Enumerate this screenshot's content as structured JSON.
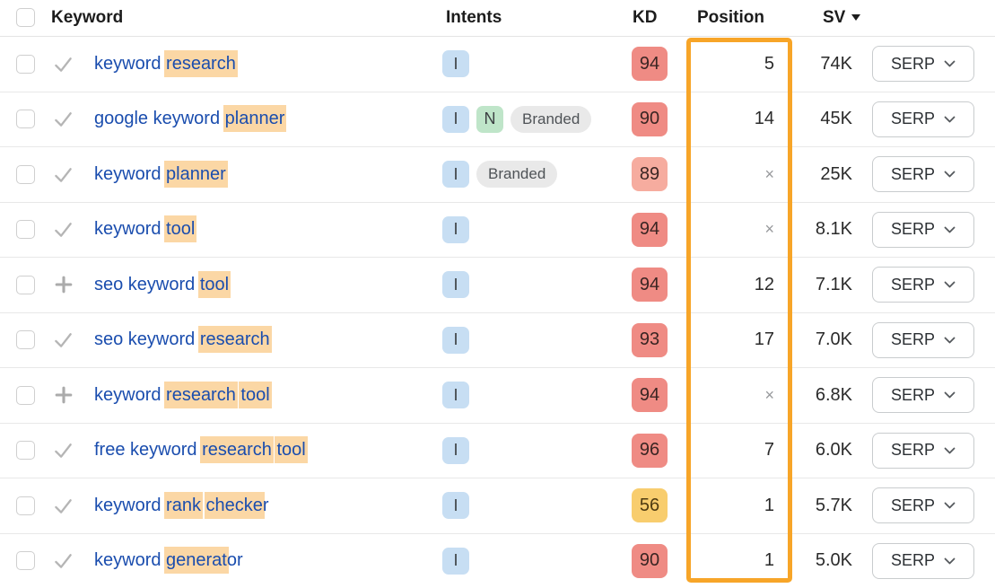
{
  "header": {
    "keyword": "Keyword",
    "intents": "Intents",
    "kd": "KD",
    "position": "Position",
    "sv": "SV",
    "sv_sort": "desc"
  },
  "serp_label": "SERP",
  "colors": {
    "accent_orange": "#f7a528",
    "keyword_link": "#1a4dae",
    "keyword_highlight": "#fbd7a5",
    "kd_red": "#ef8b84",
    "kd_light_red": "#f6ac9f",
    "kd_yellow": "#f8cd6e",
    "intent_informational": "#c7def3",
    "intent_navigational": "#bfe5c9",
    "intent_branded": "#e9e9e9"
  },
  "rows": [
    {
      "keyword_parts": [
        {
          "text": "keyword ",
          "hl": false
        },
        {
          "text": "research",
          "hl": true
        }
      ],
      "action": "check",
      "intents": [
        {
          "label": "I",
          "type": "informational"
        }
      ],
      "kd": {
        "value": "94",
        "level": "red"
      },
      "position": "5",
      "sv": "74K"
    },
    {
      "keyword_parts": [
        {
          "text": "google keyword ",
          "hl": false
        },
        {
          "text": "planner",
          "hl": true
        }
      ],
      "action": "check",
      "intents": [
        {
          "label": "I",
          "type": "informational"
        },
        {
          "label": "N",
          "type": "navigational"
        },
        {
          "label": "Branded",
          "type": "branded"
        }
      ],
      "kd": {
        "value": "90",
        "level": "red"
      },
      "position": "14",
      "sv": "45K"
    },
    {
      "keyword_parts": [
        {
          "text": "keyword ",
          "hl": false
        },
        {
          "text": "planner",
          "hl": true
        }
      ],
      "action": "check",
      "intents": [
        {
          "label": "I",
          "type": "informational"
        },
        {
          "label": "Branded",
          "type": "branded"
        }
      ],
      "kd": {
        "value": "89",
        "level": "light_red"
      },
      "position": "×",
      "sv": "25K"
    },
    {
      "keyword_parts": [
        {
          "text": "keyword ",
          "hl": false
        },
        {
          "text": "tool",
          "hl": true
        }
      ],
      "action": "check",
      "intents": [
        {
          "label": "I",
          "type": "informational"
        }
      ],
      "kd": {
        "value": "94",
        "level": "red"
      },
      "position": "×",
      "sv": "8.1K"
    },
    {
      "keyword_parts": [
        {
          "text": "seo keyword ",
          "hl": false
        },
        {
          "text": "tool",
          "hl": true
        }
      ],
      "action": "plus",
      "intents": [
        {
          "label": "I",
          "type": "informational"
        }
      ],
      "kd": {
        "value": "94",
        "level": "red"
      },
      "position": "12",
      "sv": "7.1K"
    },
    {
      "keyword_parts": [
        {
          "text": "seo keyword ",
          "hl": false
        },
        {
          "text": "research",
          "hl": true
        }
      ],
      "action": "check",
      "intents": [
        {
          "label": "I",
          "type": "informational"
        }
      ],
      "kd": {
        "value": "93",
        "level": "red"
      },
      "position": "17",
      "sv": "7.0K"
    },
    {
      "keyword_parts": [
        {
          "text": "keyword ",
          "hl": false
        },
        {
          "text": "research",
          "hl": true
        },
        {
          "text": " ",
          "hl": false
        },
        {
          "text": "tool",
          "hl": true
        }
      ],
      "action": "plus",
      "intents": [
        {
          "label": "I",
          "type": "informational"
        }
      ],
      "kd": {
        "value": "94",
        "level": "red"
      },
      "position": "×",
      "sv": "6.8K"
    },
    {
      "keyword_parts": [
        {
          "text": "free keyword ",
          "hl": false
        },
        {
          "text": "research",
          "hl": true
        },
        {
          "text": " ",
          "hl": false
        },
        {
          "text": "tool",
          "hl": true
        }
      ],
      "action": "check",
      "intents": [
        {
          "label": "I",
          "type": "informational"
        }
      ],
      "kd": {
        "value": "96",
        "level": "red"
      },
      "position": "7",
      "sv": "6.0K"
    },
    {
      "keyword_parts": [
        {
          "text": "keyword ",
          "hl": false
        },
        {
          "text": "rank",
          "hl": true
        },
        {
          "text": " ",
          "hl": false
        },
        {
          "text": "checke",
          "hl": true
        },
        {
          "text": "r",
          "hl": false
        }
      ],
      "action": "check",
      "intents": [
        {
          "label": "I",
          "type": "informational"
        }
      ],
      "kd": {
        "value": "56",
        "level": "yellow"
      },
      "position": "1",
      "sv": "5.7K"
    },
    {
      "keyword_parts": [
        {
          "text": "keyword ",
          "hl": false
        },
        {
          "text": "generat",
          "hl": true
        },
        {
          "text": "or",
          "hl": false
        }
      ],
      "action": "check",
      "intents": [
        {
          "label": "I",
          "type": "informational"
        }
      ],
      "kd": {
        "value": "90",
        "level": "red"
      },
      "position": "1",
      "sv": "5.0K"
    }
  ]
}
